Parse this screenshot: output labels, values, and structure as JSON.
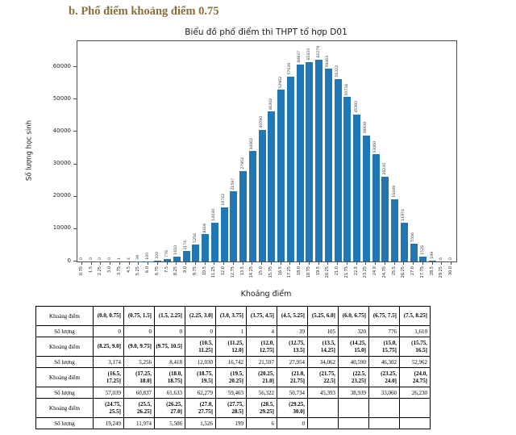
{
  "header": {
    "title": "b. Phổ điểm khoảng điểm 0.75",
    "color": "#8a6d3b"
  },
  "chart_data": {
    "type": "bar",
    "title": "Biểu đồ phổ điểm thi THPT tổ hợp D01",
    "xlabel": "Khoảng điểm",
    "ylabel": "Số lượng học sinh",
    "bar_color": "#1f77b4",
    "grid": false,
    "ylim": [
      0,
      68000
    ],
    "yticks": [
      0,
      10000,
      20000,
      30000,
      40000,
      50000,
      60000
    ],
    "categories": [
      "0.75",
      "1.5",
      "2.25",
      "3.0",
      "3.75",
      "4.5",
      "5.25",
      "6.0",
      "6.75",
      "7.5",
      "8.25",
      "9.0",
      "9.75",
      "10.5",
      "11.25",
      "12.0",
      "12.75",
      "13.5",
      "14.25",
      "15.0",
      "15.75",
      "16.5",
      "17.25",
      "18.0",
      "18.75",
      "19.5",
      "20.25",
      "21.0",
      "21.75",
      "22.5",
      "23.25",
      "24.0",
      "24.75",
      "25.5",
      "26.25",
      "27.0",
      "27.75",
      "28.5",
      "29.25",
      "30.0"
    ],
    "values": [
      0,
      0,
      0,
      0,
      1,
      4,
      39,
      105,
      320,
      776,
      1610,
      3174,
      5256,
      8418,
      12030,
      16742,
      21597,
      27954,
      34062,
      40590,
      46302,
      52962,
      57039,
      60837,
      61633,
      62279,
      59463,
      56322,
      50734,
      45393,
      38939,
      33060,
      26230,
      19249,
      11974,
      5506,
      1526,
      199,
      6,
      0
    ]
  },
  "table": {
    "rows": [
      {
        "label": "Khoảng điểm",
        "kind": "range",
        "cells": [
          "(0.0, 0.75]",
          "(0.75, 1.5]",
          "(1.5, 2.25]",
          "(2.25, 3.0]",
          "(3.0, 3.75]",
          "(3.75, 4.5]",
          "(4.5, 5.25]",
          "(5.25, 6.0]",
          "(6.0, 6.75]",
          "(6.75, 7.5]",
          "(7.5, 8.25]"
        ]
      },
      {
        "label": "Số lượng",
        "kind": "count",
        "cells": [
          "0",
          "0",
          "0",
          "0",
          "1",
          "4",
          "39",
          "105",
          "320",
          "776",
          "1,610"
        ]
      },
      {
        "label": "Khoảng điểm",
        "kind": "range",
        "cells": [
          "(8.25, 9.0]",
          "(9.0, 9.75]",
          "(9.75, 10.5]",
          "(10.5, 11.25]",
          "(11.25, 12.0]",
          "(12.0, 12.75]",
          "(12.75, 13.5]",
          "(13.5, 14.25]",
          "(14.25, 15.0]",
          "(15.0, 15.75]",
          "(15.75, 16.5]"
        ]
      },
      {
        "label": "Số lượng",
        "kind": "count",
        "cells": [
          "3,174",
          "5,256",
          "8,418",
          "12,030",
          "16,742",
          "21,597",
          "27,954",
          "34,062",
          "40,590",
          "46,302",
          "52,962"
        ]
      },
      {
        "label": "Khoảng điểm",
        "kind": "range",
        "cells": [
          "(16.5, 17.25]",
          "(17.25, 18.0]",
          "(18.0, 18.75]",
          "(18.75, 19.5]",
          "(19.5, 20.25]",
          "(20.25, 21.0]",
          "(21.0, 21.75]",
          "(21.75, 22.5]",
          "(22.5, 23.25]",
          "(23.25, 24.0]",
          "(24.0, 24.75]"
        ]
      },
      {
        "label": "Số lượng",
        "kind": "count",
        "cells": [
          "57,039",
          "60,837",
          "61,633",
          "62,279",
          "59,463",
          "56,322",
          "50,734",
          "45,393",
          "38,939",
          "33,060",
          "26,230"
        ]
      },
      {
        "label": "Khoảng điểm",
        "kind": "range",
        "cells": [
          "(24.75, 25.5]",
          "(25.5, 26.25]",
          "(26.25, 27.0]",
          "(27.0, 27.75]",
          "(27.75, 28.5]",
          "(28.5, 29.25]",
          "(29.25, 30.0]",
          "",
          "",
          "",
          ""
        ]
      },
      {
        "label": "Số lượng",
        "kind": "count",
        "cells": [
          "19,249",
          "11,974",
          "5,506",
          "1,526",
          "199",
          "6",
          "0",
          "",
          "",
          "",
          ""
        ]
      }
    ]
  }
}
